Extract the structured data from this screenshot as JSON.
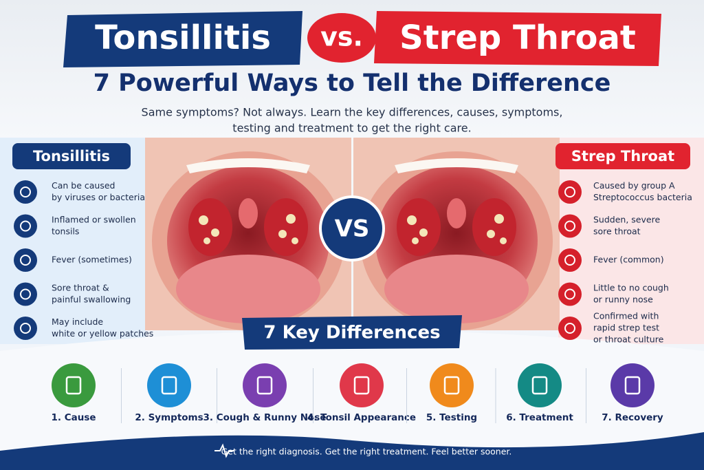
{
  "header": {
    "title_left": "Tonsillitis",
    "title_vs": "vs.",
    "title_right": "Strep Throat",
    "subtitle": "7 Powerful Ways to Tell the Difference",
    "intro": [
      "Same symptoms? Not always. Learn the key differences, causes, symptoms,",
      "testing and treatment to get the right care."
    ]
  },
  "left_panel": {
    "title": "Tonsillitis",
    "items": [
      [
        "Can be caused",
        "by viruses or bacteria"
      ],
      [
        "Inflamed or swollen",
        "tonsils"
      ],
      [
        "Fever (sometimes)"
      ],
      [
        "Sore throat &",
        "painful swallowing"
      ],
      [
        "May include",
        "white or yellow patches"
      ]
    ]
  },
  "vs_badge": "VS",
  "right_panel": {
    "title": "Strep Throat",
    "items": [
      [
        "Caused by group A",
        "Streptococcus bacteria"
      ],
      [
        "Sudden, severe",
        "sore throat"
      ],
      [
        "Fever (common)"
      ],
      [
        "Little to no cough",
        "or runny nose"
      ],
      [
        "Confirmed with",
        "rapid strep test",
        "or throat culture"
      ]
    ]
  },
  "key_differences": {
    "title": "7 Key Differences",
    "items": [
      "1. Cause",
      "2. Symptoms",
      "3. Cough & Runny Nose",
      "4. Tonsil Appearance",
      "5. Testing",
      "6. Treatment",
      "7. Recovery"
    ]
  },
  "footer": "Get the right diagnosis. Get the right treatment. Feel better sooner."
}
